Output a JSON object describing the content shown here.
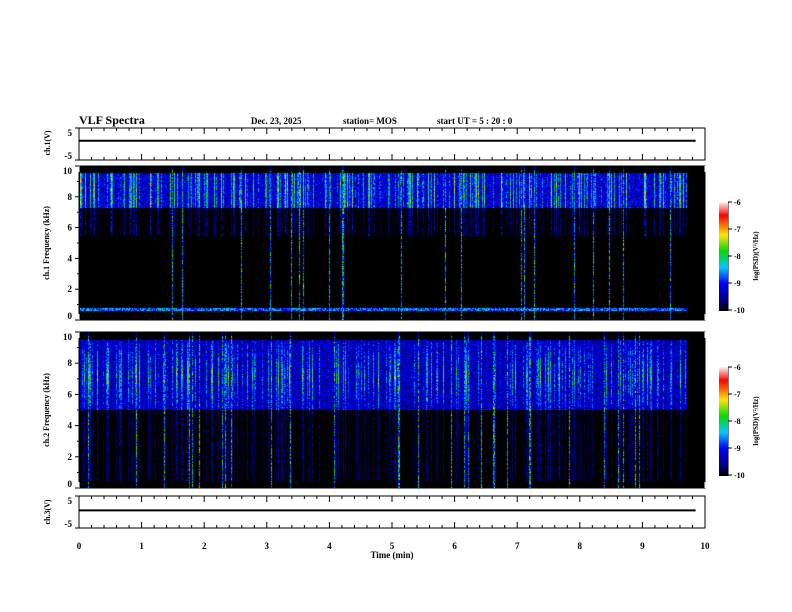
{
  "header": {
    "title": "VLF Spectra",
    "date": "Dec. 23, 2025",
    "station": "station= MOS",
    "start": "start  UT =   5  : 20 : 0"
  },
  "chart_data": [
    {
      "type": "line",
      "name": "ch1-voltage",
      "ylabel": "ch.1(V)",
      "ylim": [
        -5,
        5
      ],
      "yticks": [
        "5",
        "-5"
      ],
      "xlim": [
        0,
        10
      ],
      "values_approx": "flat near 1 V"
    },
    {
      "type": "heatmap",
      "name": "ch1-spectrogram",
      "ylabel": "ch.1 Frequency (kHz)",
      "ylim": [
        0,
        10
      ],
      "yticks": [
        "0",
        "2",
        "4",
        "6",
        "8",
        "10"
      ],
      "xlim": [
        0,
        10
      ],
      "data_end_min": 9.85,
      "colorbar": {
        "label": "log(PSD)(V²/Hz)",
        "range": [
          -10,
          -6
        ],
        "ticks": [
          "-6",
          "-7",
          "-8",
          "-9",
          "-10"
        ]
      },
      "features": "sferic band 7.5-9.5 kHz, line at 0.7 kHz"
    },
    {
      "type": "heatmap",
      "name": "ch2-spectrogram",
      "ylabel": "ch.2 Frequency (kHz)",
      "ylim": [
        0,
        10
      ],
      "yticks": [
        "0",
        "2",
        "4",
        "6",
        "8",
        "10"
      ],
      "xlim": [
        0,
        10
      ],
      "data_end_min": 9.85,
      "colorbar": {
        "label": "log(PSD)(V²/Hz)",
        "range": [
          -10,
          -6
        ],
        "ticks": [
          "-6",
          "-7",
          "-8",
          "-9",
          "-10"
        ]
      },
      "features": "strong emissions 5-9 kHz"
    },
    {
      "type": "line",
      "name": "ch3-voltage",
      "ylabel": "ch.3(V)",
      "ylim": [
        -5,
        5
      ],
      "yticks": [
        "5",
        "-5"
      ],
      "xlim": [
        0,
        10
      ],
      "values_approx": "flat near 0.5 V"
    }
  ],
  "xaxis": {
    "label": "Time (min)",
    "ticks": [
      "0",
      "1",
      "2",
      "3",
      "4",
      "5",
      "6",
      "7",
      "8",
      "9",
      "10"
    ]
  }
}
